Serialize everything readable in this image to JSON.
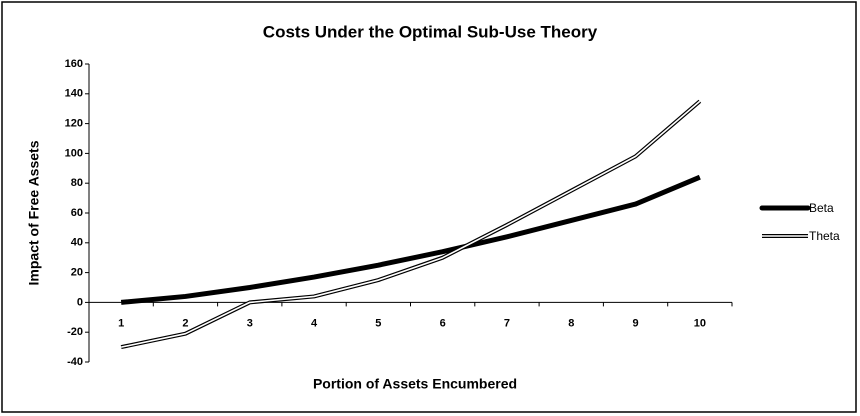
{
  "chart_data": {
    "type": "line",
    "title": "Costs Under the Optimal Sub-Use Theory",
    "x_label": "Portion of Assets Encumbered",
    "y_label": "Impact of Free Assets",
    "categories": [
      "1",
      "2",
      "3",
      "4",
      "5",
      "6",
      "7",
      "8",
      "9",
      "10"
    ],
    "series": [
      {
        "name": "Beta",
        "color": "#000000",
        "style": "solid",
        "values": [
          0,
          4,
          10,
          17,
          25,
          34,
          44,
          55,
          66,
          84
        ]
      },
      {
        "name": "Theta",
        "color": "#ffffff",
        "style": "double",
        "values": [
          -30,
          -21,
          0,
          4,
          15,
          30,
          52,
          75,
          98,
          135
        ]
      }
    ],
    "ylim": [
      -40,
      160
    ],
    "yticks": [
      -40,
      -20,
      0,
      20,
      40,
      60,
      80,
      100,
      120,
      140,
      160
    ],
    "legend": "right"
  }
}
